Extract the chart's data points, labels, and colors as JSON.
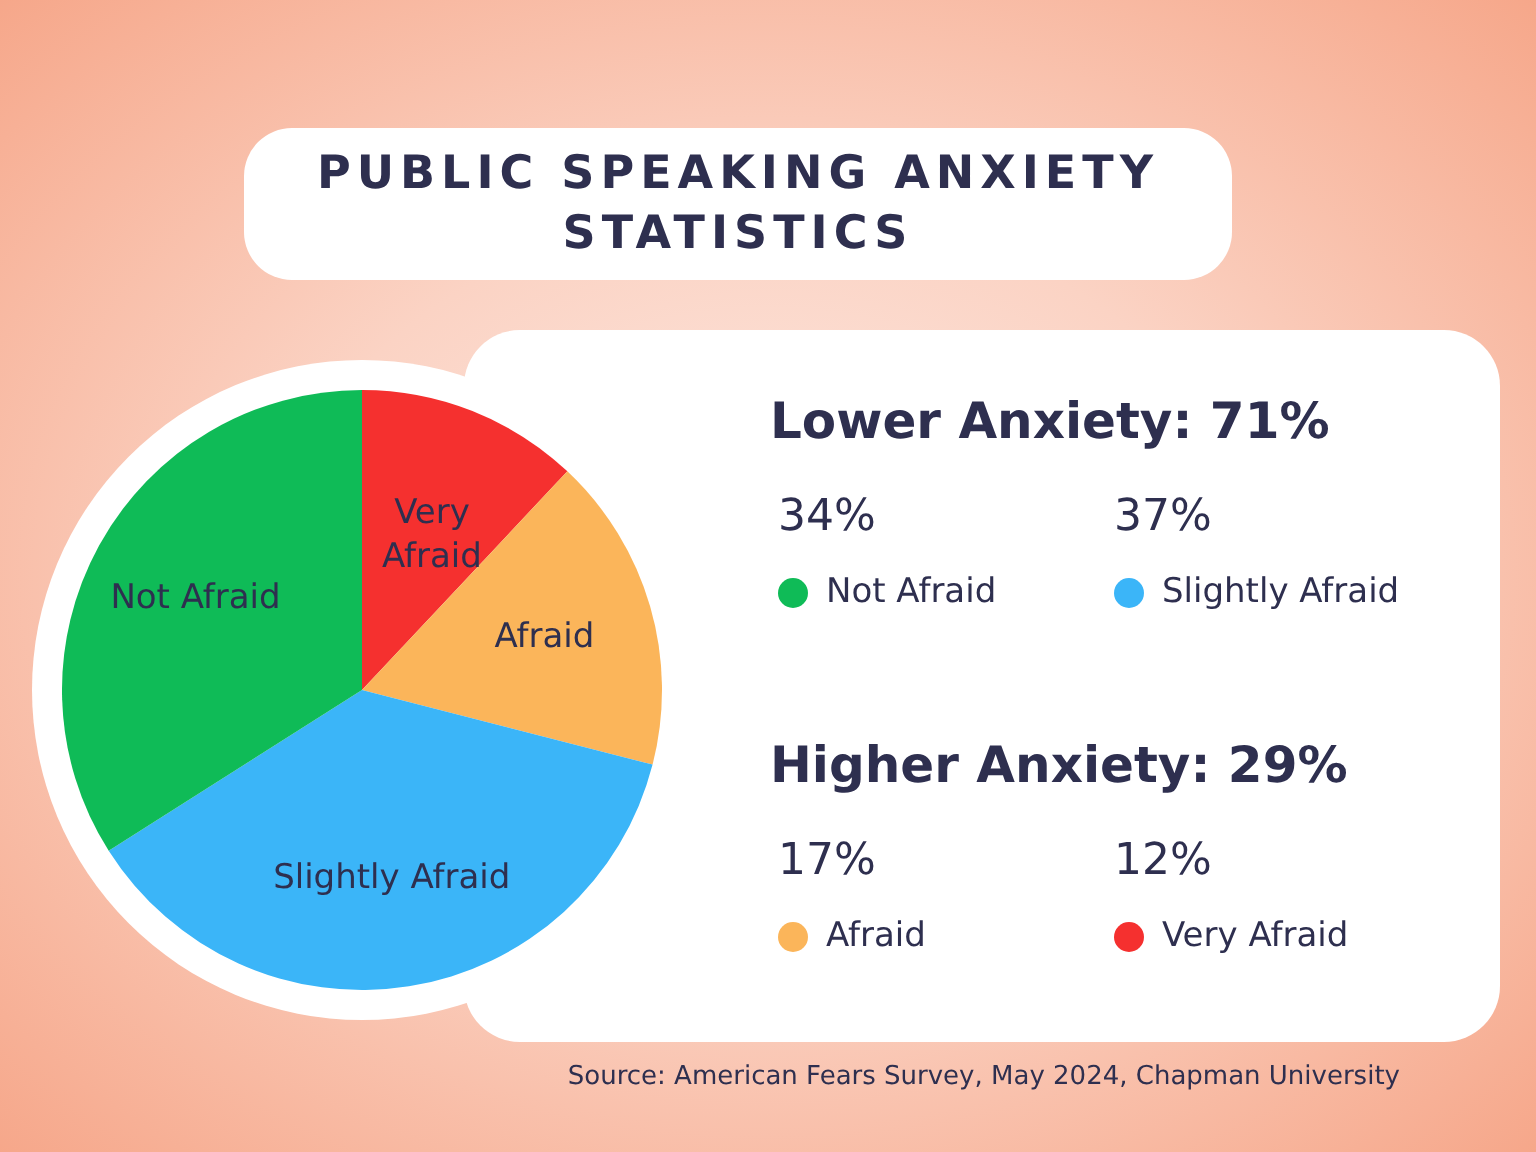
{
  "chart_data": {
    "type": "pie",
    "title": "PUBLIC SPEAKING ANXIETY STATISTICS",
    "categories": [
      "Very Afraid",
      "Afraid",
      "Slightly Afraid",
      "Not Afraid"
    ],
    "values": [
      12,
      17,
      37,
      34
    ],
    "colors": [
      "#f5302f",
      "#fbb55a",
      "#3bb5f8",
      "#0fbb57"
    ],
    "value_labels": [
      "12%",
      "17%",
      "37%",
      "34%"
    ],
    "legend": "right",
    "annotations": [
      "Lower Anxiety: 71%",
      "Higher Anxiety: 29%",
      "Source: American Fears Survey, May 2024, Chapman University"
    ]
  }
}
